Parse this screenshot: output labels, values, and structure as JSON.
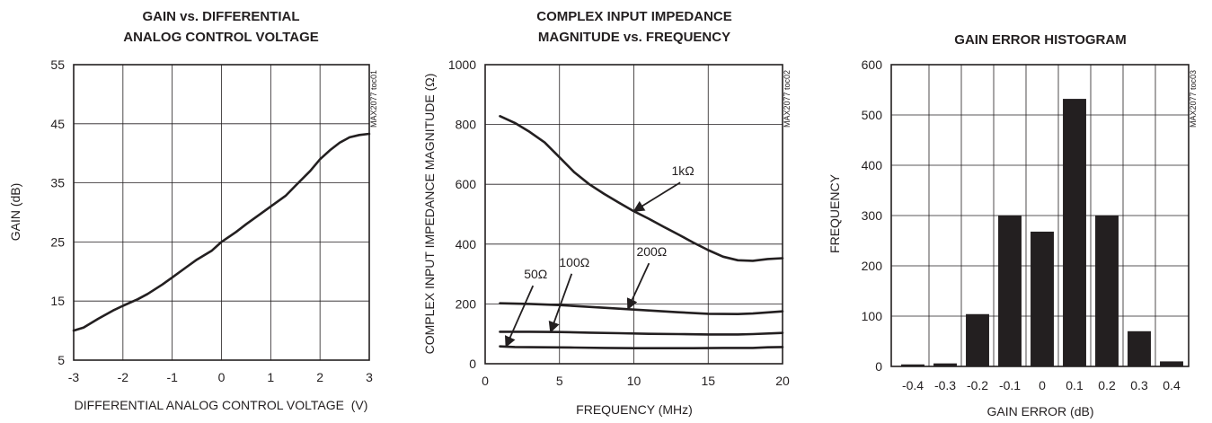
{
  "chart_data": [
    {
      "id": "toc01",
      "type": "line",
      "title": [
        "GAIN vs. DIFFERENTIAL",
        "ANALOG CONTROL VOLTAGE"
      ],
      "xlabel": "DIFFERENTIAL ANALOG CONTROL VOLTAGE  (V)",
      "ylabel": "GAIN (dB)",
      "code": "MAX2077 toc01",
      "xlim": [
        -3,
        3
      ],
      "ylim": [
        5,
        55
      ],
      "xticks": [
        -3,
        -2,
        -1,
        0,
        1,
        2,
        3
      ],
      "xtick_labels": [
        "-3",
        "-2",
        "-1",
        "0",
        "1",
        "2",
        "3"
      ],
      "yticks": [
        5,
        15,
        25,
        35,
        45,
        55
      ],
      "ytick_labels": [
        "5",
        "15",
        "25",
        "35",
        "45",
        "55"
      ],
      "grid": true,
      "series": [
        {
          "x": [
            -3,
            -2.8,
            -2.5,
            -2.2,
            -2,
            -1.7,
            -1.5,
            -1.2,
            -1,
            -0.7,
            -0.5,
            -0.2,
            0,
            0.3,
            0.5,
            0.8,
            1,
            1.3,
            1.5,
            1.8,
            2,
            2.2,
            2.4,
            2.6,
            2.8,
            3
          ],
          "y": [
            10,
            10.5,
            12,
            13.4,
            14.2,
            15.3,
            16.2,
            17.8,
            19,
            20.8,
            22,
            23.5,
            25,
            26.7,
            28,
            29.8,
            31,
            32.8,
            34.5,
            37,
            39,
            40.5,
            41.8,
            42.7,
            43.1,
            43.3
          ]
        }
      ]
    },
    {
      "id": "toc02",
      "type": "line",
      "title": [
        "COMPLEX INPUT IMPEDANCE",
        "MAGNITUDE vs. FREQUENCY"
      ],
      "xlabel": "FREQUENCY (MHz)",
      "ylabel": "COMPLEX INPUT IMPEDANCE MAGNITUDE (Ω)",
      "code": "MAX2077 toc02",
      "xlim": [
        0,
        20
      ],
      "ylim": [
        0,
        1000
      ],
      "xticks": [
        0,
        5,
        10,
        15,
        20
      ],
      "xtick_labels": [
        "0",
        "5",
        "10",
        "15",
        "20"
      ],
      "yticks": [
        0,
        200,
        400,
        600,
        800,
        1000
      ],
      "ytick_labels": [
        "0",
        "200",
        "400",
        "600",
        "800",
        "1000"
      ],
      "grid": true,
      "series": [
        {
          "name": "1kΩ",
          "x": [
            1,
            2,
            3,
            4,
            5,
            6,
            7,
            8,
            9,
            10,
            11,
            12,
            13,
            14,
            15,
            16,
            17,
            18,
            19,
            20
          ],
          "y": [
            828,
            805,
            775,
            740,
            690,
            640,
            600,
            568,
            538,
            510,
            485,
            458,
            432,
            405,
            380,
            358,
            346,
            344,
            350,
            353
          ]
        },
        {
          "name": "200Ω",
          "x": [
            1,
            3,
            5,
            7,
            9,
            11,
            13,
            15,
            17,
            18,
            20
          ],
          "y": [
            202,
            200,
            196,
            190,
            184,
            178,
            172,
            167,
            166,
            168,
            175
          ]
        },
        {
          "name": "100Ω",
          "x": [
            1,
            3,
            5,
            7,
            9,
            11,
            13,
            15,
            17,
            18,
            20
          ],
          "y": [
            107,
            107,
            106,
            104,
            102,
            100,
            99,
            98,
            98,
            99,
            103
          ]
        },
        {
          "name": "50Ω",
          "x": [
            1,
            2,
            4,
            6,
            8,
            10,
            12,
            14,
            16,
            18,
            19,
            20
          ],
          "y": [
            58,
            56,
            55,
            54,
            53,
            52,
            52,
            52,
            53,
            53,
            55,
            56
          ]
        }
      ],
      "annotations": [
        {
          "text": "1kΩ",
          "at": [
            13.3,
            630
          ],
          "arrow_to": [
            10,
            510
          ]
        },
        {
          "text": "200Ω",
          "at": [
            11.2,
            360
          ],
          "arrow_to": [
            9.6,
            183
          ]
        },
        {
          "text": "100Ω",
          "at": [
            6.0,
            325
          ],
          "arrow_to": [
            4.4,
            106
          ]
        },
        {
          "text": "50Ω",
          "at": [
            3.4,
            285
          ],
          "arrow_to": [
            1.4,
            57
          ]
        }
      ]
    },
    {
      "id": "toc03",
      "type": "bar",
      "title": [
        "GAIN ERROR HISTOGRAM"
      ],
      "xlabel": "GAIN ERROR (dB)",
      "ylabel": "FREQUENCY",
      "code": "MAX2077 toc03",
      "categories": [
        "-0.4",
        "-0.3",
        "-0.2",
        "-0.1",
        "0",
        "0.1",
        "0.2",
        "0.3",
        "0.4"
      ],
      "values": [
        4,
        6,
        104,
        300,
        268,
        532,
        300,
        70,
        10
      ],
      "ylim": [
        0,
        600
      ],
      "yticks": [
        0,
        100,
        200,
        300,
        400,
        500,
        600
      ],
      "ytick_labels": [
        "0",
        "100",
        "200",
        "300",
        "400",
        "500",
        "600"
      ],
      "grid": true
    }
  ]
}
